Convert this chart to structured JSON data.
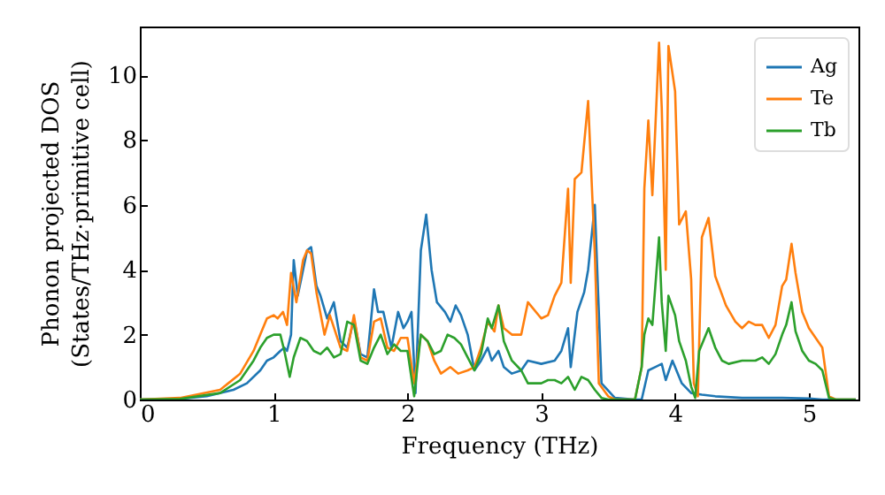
{
  "chart_data": {
    "type": "line",
    "xlabel": "Frequency (THz)",
    "ylabel": "Phonon projected DOS\n(States/THz·primitive cell)",
    "xlim": [
      0,
      5.37
    ],
    "ylim": [
      0,
      11.5
    ],
    "xticks": [
      0,
      1,
      2,
      3,
      4,
      5
    ],
    "yticks": [
      0,
      2,
      4,
      6,
      8,
      10
    ],
    "legend": "top right",
    "grid": false,
    "series": [
      {
        "name": "Ag",
        "color": "#1f77b4",
        "x": [
          0,
          0.3,
          0.5,
          0.7,
          0.8,
          0.9,
          0.95,
          1.0,
          1.05,
          1.08,
          1.1,
          1.13,
          1.15,
          1.18,
          1.2,
          1.25,
          1.28,
          1.32,
          1.35,
          1.4,
          1.45,
          1.5,
          1.55,
          1.6,
          1.65,
          1.7,
          1.75,
          1.78,
          1.82,
          1.88,
          1.93,
          1.97,
          2.0,
          2.03,
          2.06,
          2.1,
          2.14,
          2.18,
          2.22,
          2.28,
          2.32,
          2.36,
          2.4,
          2.45,
          2.5,
          2.55,
          2.6,
          2.63,
          2.68,
          2.72,
          2.78,
          2.85,
          2.9,
          3.0,
          3.1,
          3.15,
          3.2,
          3.22,
          3.27,
          3.32,
          3.35,
          3.4,
          3.45,
          3.55,
          3.7,
          3.75,
          3.8,
          3.85,
          3.9,
          3.93,
          3.98,
          4.05,
          4.12,
          4.2,
          4.3,
          4.5,
          4.8,
          5.0,
          5.1,
          5.35
        ],
        "values": [
          0,
          0.02,
          0.1,
          0.3,
          0.5,
          0.9,
          1.2,
          1.3,
          1.5,
          1.6,
          1.5,
          2.0,
          4.3,
          3.2,
          3.6,
          4.6,
          4.7,
          3.5,
          3.2,
          2.5,
          3.0,
          1.8,
          1.6,
          2.5,
          1.4,
          1.3,
          3.4,
          2.7,
          2.7,
          1.6,
          2.7,
          2.2,
          2.4,
          2.7,
          0.2,
          4.6,
          5.7,
          4.0,
          3.0,
          2.7,
          2.4,
          2.9,
          2.6,
          2.0,
          0.9,
          1.2,
          1.6,
          1.2,
          1.5,
          1.0,
          0.8,
          0.9,
          1.2,
          1.1,
          1.2,
          1.5,
          2.2,
          1.0,
          2.7,
          3.3,
          4.0,
          6.0,
          0.5,
          0.05,
          0,
          0,
          0.9,
          1.0,
          1.1,
          0.6,
          1.2,
          0.5,
          0.2,
          0.15,
          0.1,
          0.05,
          0.05,
          0.03,
          0,
          0
        ]
      },
      {
        "name": "Te",
        "color": "#ff7f0e",
        "x": [
          0,
          0.3,
          0.6,
          0.75,
          0.85,
          0.9,
          0.95,
          1.0,
          1.03,
          1.07,
          1.1,
          1.13,
          1.17,
          1.22,
          1.25,
          1.28,
          1.32,
          1.38,
          1.42,
          1.5,
          1.55,
          1.6,
          1.65,
          1.7,
          1.75,
          1.8,
          1.85,
          1.9,
          1.95,
          2.0,
          2.05,
          2.1,
          2.15,
          2.2,
          2.25,
          2.32,
          2.38,
          2.45,
          2.5,
          2.55,
          2.6,
          2.65,
          2.68,
          2.72,
          2.78,
          2.85,
          2.9,
          3.0,
          3.05,
          3.1,
          3.15,
          3.2,
          3.22,
          3.25,
          3.3,
          3.35,
          3.4,
          3.43,
          3.5,
          3.55,
          3.7,
          3.75,
          3.77,
          3.8,
          3.83,
          3.88,
          3.9,
          3.93,
          3.95,
          4.0,
          4.03,
          4.08,
          4.12,
          4.14,
          4.17,
          4.2,
          4.25,
          4.3,
          4.38,
          4.45,
          4.5,
          4.55,
          4.6,
          4.65,
          4.7,
          4.75,
          4.8,
          4.83,
          4.87,
          4.9,
          4.95,
          5.0,
          5.05,
          5.1,
          5.15,
          5.2,
          5.35
        ],
        "values": [
          0,
          0.05,
          0.3,
          0.8,
          1.5,
          2.0,
          2.5,
          2.6,
          2.5,
          2.7,
          2.3,
          3.9,
          3.0,
          4.3,
          4.6,
          4.5,
          3.3,
          2.0,
          2.6,
          1.6,
          1.5,
          2.6,
          1.3,
          1.2,
          2.4,
          2.5,
          1.6,
          1.5,
          1.9,
          1.9,
          0.5,
          2.0,
          1.8,
          1.2,
          0.8,
          1.0,
          0.8,
          0.9,
          1.0,
          1.6,
          2.4,
          2.1,
          2.9,
          2.2,
          2.0,
          2.0,
          3.0,
          2.5,
          2.6,
          3.2,
          3.6,
          6.5,
          3.6,
          6.8,
          7.0,
          9.2,
          4.5,
          0.5,
          0.1,
          0,
          0,
          1.0,
          6.5,
          8.6,
          6.3,
          11.0,
          9.0,
          4.0,
          10.9,
          9.5,
          5.4,
          5.8,
          3.7,
          0.5,
          0.1,
          5.0,
          5.6,
          3.8,
          2.9,
          2.4,
          2.2,
          2.4,
          2.3,
          2.3,
          1.9,
          2.3,
          3.5,
          3.7,
          4.8,
          3.9,
          2.7,
          2.2,
          1.9,
          1.6,
          0.1,
          0,
          0
        ]
      },
      {
        "name": "Tb",
        "color": "#2ca02c",
        "x": [
          0,
          0.3,
          0.6,
          0.75,
          0.85,
          0.9,
          0.95,
          1.0,
          1.05,
          1.08,
          1.12,
          1.15,
          1.2,
          1.25,
          1.3,
          1.35,
          1.4,
          1.45,
          1.5,
          1.55,
          1.6,
          1.65,
          1.7,
          1.75,
          1.8,
          1.85,
          1.9,
          1.95,
          2.0,
          2.05,
          2.1,
          2.15,
          2.2,
          2.25,
          2.3,
          2.35,
          2.4,
          2.45,
          2.5,
          2.55,
          2.6,
          2.63,
          2.68,
          2.72,
          2.78,
          2.85,
          2.9,
          3.0,
          3.05,
          3.1,
          3.15,
          3.2,
          3.25,
          3.3,
          3.35,
          3.4,
          3.45,
          3.5,
          3.7,
          3.75,
          3.77,
          3.8,
          3.83,
          3.88,
          3.9,
          3.93,
          3.95,
          4.0,
          4.03,
          4.08,
          4.12,
          4.15,
          4.18,
          4.25,
          4.3,
          4.35,
          4.4,
          4.5,
          4.6,
          4.65,
          4.7,
          4.75,
          4.8,
          4.83,
          4.87,
          4.9,
          4.95,
          5.0,
          5.05,
          5.1,
          5.15,
          5.2,
          5.35
        ],
        "values": [
          0,
          0.02,
          0.2,
          0.6,
          1.2,
          1.6,
          1.9,
          2.0,
          2.0,
          1.5,
          0.7,
          1.3,
          1.9,
          1.8,
          1.5,
          1.4,
          1.6,
          1.3,
          1.4,
          2.4,
          2.3,
          1.2,
          1.1,
          1.6,
          2.0,
          1.4,
          1.7,
          1.5,
          1.5,
          0.1,
          2.0,
          1.8,
          1.4,
          1.5,
          2.0,
          1.9,
          1.7,
          1.3,
          0.9,
          1.4,
          2.5,
          2.2,
          2.9,
          1.8,
          1.2,
          0.9,
          0.5,
          0.5,
          0.6,
          0.6,
          0.5,
          0.7,
          0.3,
          0.7,
          0.6,
          0.3,
          0.05,
          0,
          0,
          1.0,
          2.0,
          2.5,
          2.3,
          5.0,
          3.0,
          1.5,
          3.2,
          2.6,
          1.8,
          1.2,
          0.4,
          0.05,
          1.5,
          2.2,
          1.6,
          1.2,
          1.1,
          1.2,
          1.2,
          1.3,
          1.1,
          1.4,
          2.0,
          2.3,
          3.0,
          2.1,
          1.5,
          1.2,
          1.1,
          0.9,
          0.05,
          0,
          0
        ]
      }
    ]
  }
}
